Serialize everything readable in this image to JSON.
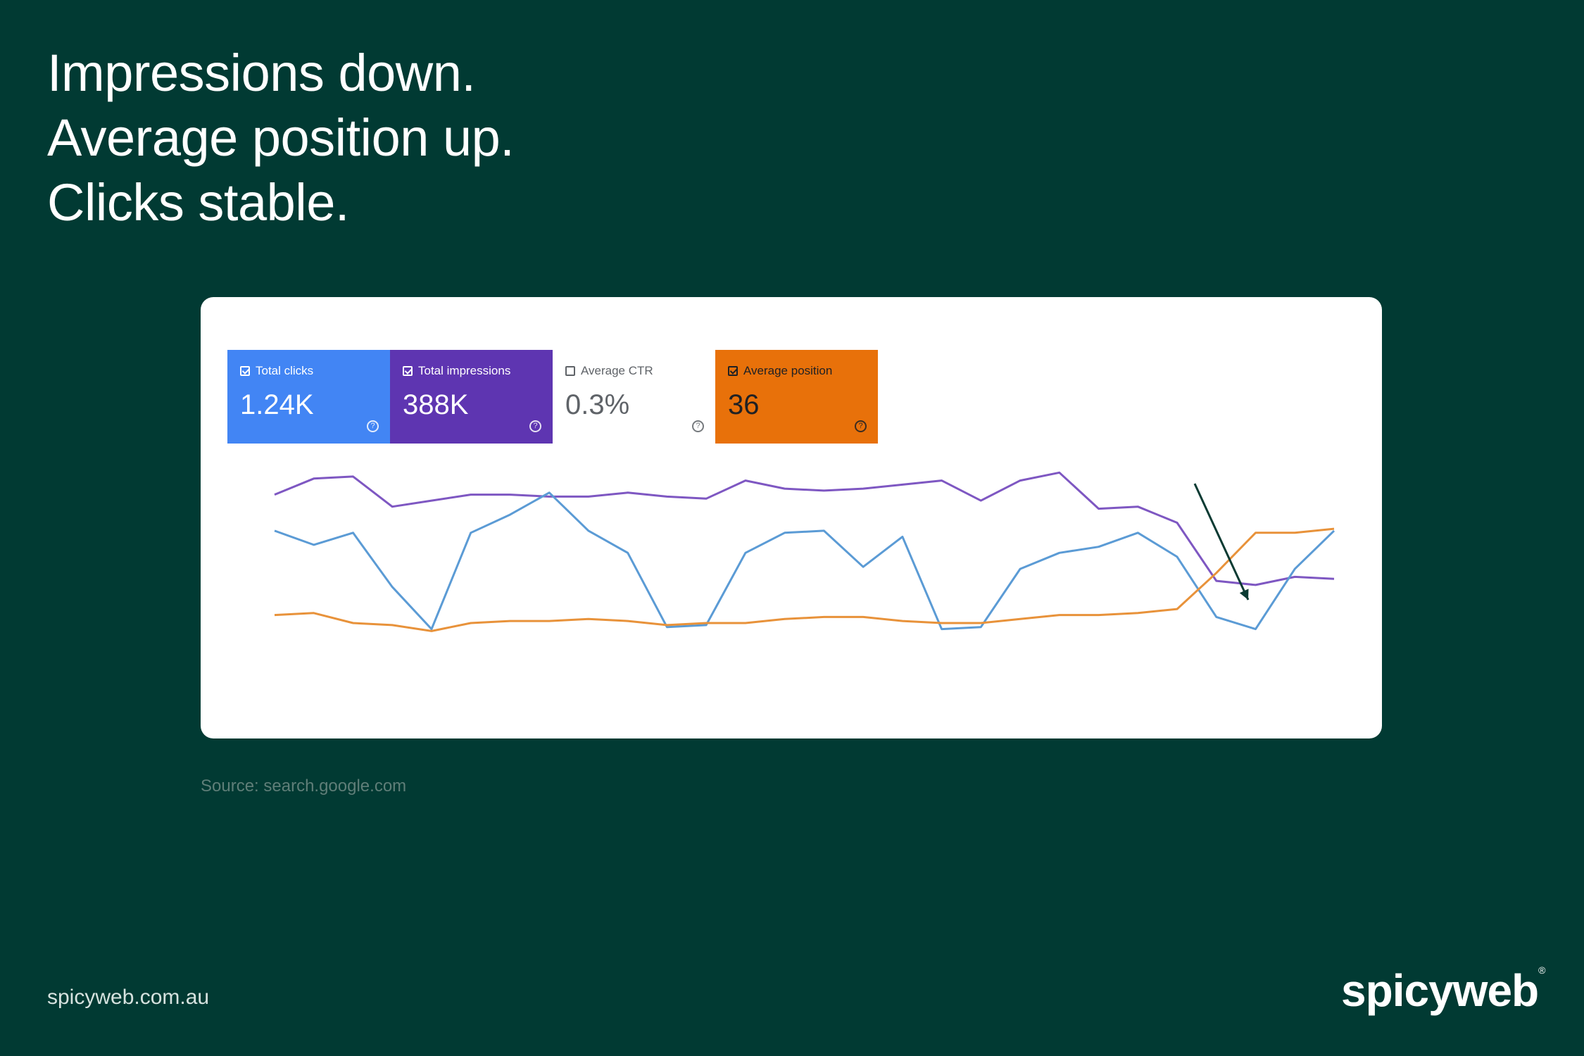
{
  "headline": {
    "line1": "Impressions down.",
    "line2": "Average position up.",
    "line3": "Clicks stable."
  },
  "metrics": [
    {
      "label": "Total clicks",
      "value": "1.24K",
      "checked": true,
      "bg": "#4285f4",
      "fg": "#ffffff"
    },
    {
      "label": "Total impressions",
      "value": "388K",
      "checked": true,
      "bg": "#5e35b1",
      "fg": "#ffffff"
    },
    {
      "label": "Average CTR",
      "value": "0.3%",
      "checked": false,
      "bg": "#ffffff",
      "fg": "#5f6368"
    },
    {
      "label": "Average position",
      "value": "36",
      "checked": true,
      "bg": "#e8710a",
      "fg": "#202124"
    }
  ],
  "help_glyph": "?",
  "chart_data": {
    "type": "line",
    "ylim": [
      0,
      100
    ],
    "series": [
      {
        "color": "#7e57c2",
        "values": [
          84,
          92,
          93,
          78,
          81,
          84,
          84,
          83,
          83,
          85,
          83,
          82,
          91,
          87,
          86,
          87,
          89,
          91,
          81,
          91,
          95,
          77,
          78,
          70,
          41,
          39,
          43,
          42
        ]
      },
      {
        "color": "#5b9bd5",
        "values": [
          66,
          59,
          65,
          38,
          17,
          65,
          74,
          85,
          66,
          55,
          18,
          19,
          55,
          65,
          66,
          48,
          63,
          17,
          18,
          47,
          55,
          58,
          65,
          53,
          23,
          17,
          47,
          66
        ]
      },
      {
        "color": "#e8923a",
        "values": [
          24,
          25,
          20,
          19,
          16,
          20,
          21,
          21,
          22,
          21,
          19,
          20,
          20,
          22,
          23,
          23,
          21,
          20,
          20,
          22,
          24,
          24,
          25,
          27,
          45,
          65,
          65,
          67
        ]
      }
    ],
    "annotation": {
      "type": "arrow",
      "color": "#0b3b33"
    }
  },
  "source": "Source: search.google.com",
  "footer_url": "spicyweb.com.au",
  "logo_text": "spicyweb",
  "logo_mark": "®"
}
